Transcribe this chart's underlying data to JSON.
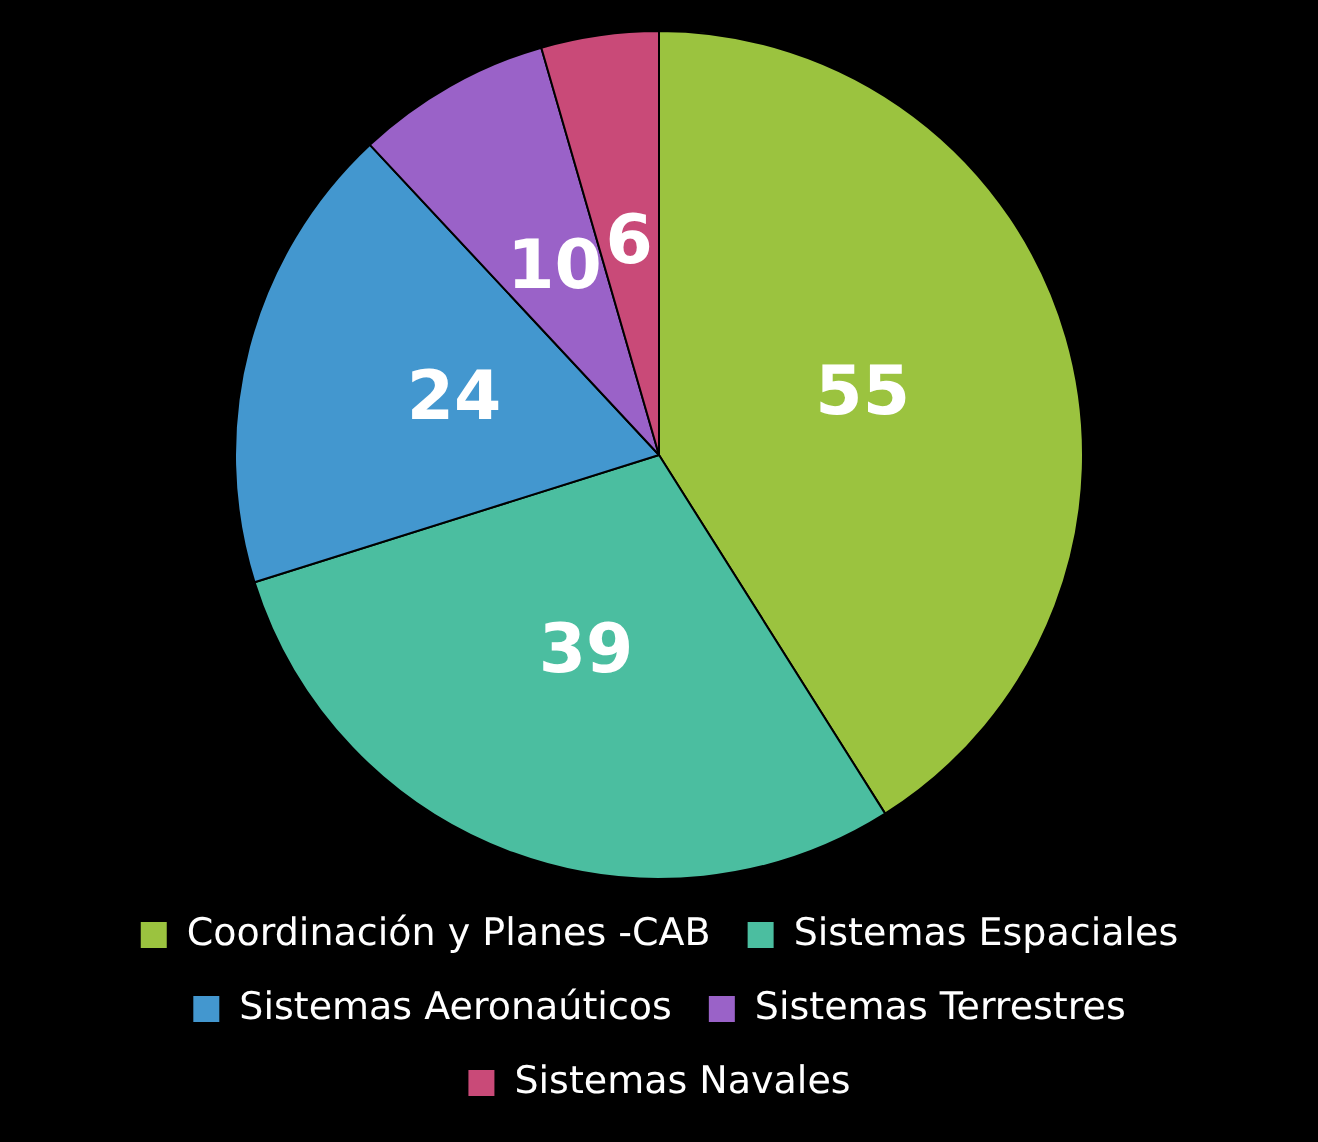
{
  "chart_data": {
    "type": "pie",
    "categories": [
      "Coordinación y Planes -CAB",
      "Sistemas Espaciales",
      "Sistemas Aeronaúticos",
      "Sistemas Terrestres",
      "Sistemas Navales"
    ],
    "values": [
      55,
      39,
      24,
      10,
      6
    ],
    "colors": [
      "#9bc33f",
      "#4bbea0",
      "#4397cf",
      "#9a62c8",
      "#c94a78"
    ],
    "data_labels": true,
    "legend": "bottom"
  }
}
